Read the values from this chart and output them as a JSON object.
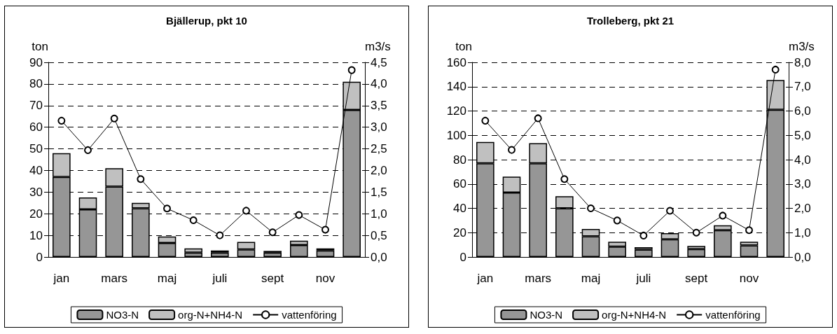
{
  "chart_data": [
    {
      "type": "bar",
      "title": "Bjällerup, pkt 10",
      "ylabel": "ton",
      "y2label": "m3/s",
      "categories": [
        "jan",
        null,
        "mars",
        null,
        "maj",
        null,
        "juli",
        null,
        "sept",
        null,
        "nov",
        null
      ],
      "stacked": true,
      "series": [
        {
          "name": "NO3-N",
          "color": "#969696",
          "values": [
            37,
            22,
            32.5,
            22.5,
            6.5,
            2,
            2,
            3.5,
            2,
            5.5,
            3,
            68
          ]
        },
        {
          "name": "org-N+NH4-N",
          "color": "#c0c0c0",
          "values": [
            11,
            5.5,
            8.5,
            2.5,
            3,
            2,
            1,
            3.5,
            0.8,
            2,
            1,
            13
          ]
        },
        {
          "name": "vattenföring",
          "type": "line",
          "axis": "y2",
          "color": "#000000",
          "marker": "circle",
          "line_style": "solid",
          "values": [
            3.15,
            2.47,
            3.2,
            1.8,
            1.12,
            0.85,
            0.5,
            1.07,
            0.57,
            0.97,
            0.63,
            4.32
          ]
        }
      ],
      "ylim": [
        0,
        90
      ],
      "yticks": [
        0,
        10,
        20,
        30,
        40,
        50,
        60,
        70,
        80,
        90
      ],
      "y2lim": [
        0,
        4.5
      ],
      "y2ticks": [
        {
          "value": 0,
          "label": "0,0"
        },
        {
          "value": 0.5,
          "label": "0,5"
        },
        {
          "value": 1,
          "label": "1,0"
        },
        {
          "value": 1.5,
          "label": "1,5"
        },
        {
          "value": 2,
          "label": "2,0"
        },
        {
          "value": 2.5,
          "label": "2,5"
        },
        {
          "value": 3,
          "label": "3,0"
        },
        {
          "value": 3.5,
          "label": "3,5"
        },
        {
          "value": 4,
          "label": "4,0"
        },
        {
          "value": 4.5,
          "label": "4,5"
        }
      ],
      "grid": "y",
      "legend": "bottom"
    },
    {
      "type": "bar",
      "title": "Trolleberg, pkt 21",
      "ylabel": "ton",
      "y2label": "m3/s",
      "categories": [
        "jan",
        null,
        "mars",
        null,
        "maj",
        null,
        "juli",
        null,
        "sept",
        null,
        "nov",
        null
      ],
      "stacked": true,
      "series": [
        {
          "name": "NO3-N",
          "color": "#969696",
          "values": [
            77,
            53,
            77,
            40,
            17,
            8.5,
            6,
            14.5,
            6.5,
            22,
            9.5,
            121
          ]
        },
        {
          "name": "org-N+NH4-N",
          "color": "#c0c0c0",
          "values": [
            17.5,
            13,
            16.5,
            10,
            6,
            4,
            2,
            5,
            2.5,
            4,
            3,
            24.5
          ]
        },
        {
          "name": "vattenföring",
          "type": "line",
          "axis": "y2",
          "color": "#000000",
          "marker": "circle",
          "line_style": "solid",
          "values": [
            5.6,
            4.4,
            5.7,
            3.2,
            2.0,
            1.5,
            0.88,
            1.9,
            1.0,
            1.7,
            1.1,
            7.7
          ]
        }
      ],
      "ylim": [
        0,
        160
      ],
      "yticks": [
        0,
        20,
        40,
        60,
        80,
        100,
        120,
        140,
        160
      ],
      "y2lim": [
        0,
        8
      ],
      "y2ticks": [
        {
          "value": 0,
          "label": "0,0"
        },
        {
          "value": 1,
          "label": "1,0"
        },
        {
          "value": 2,
          "label": "2,0"
        },
        {
          "value": 3,
          "label": "3,0"
        },
        {
          "value": 4,
          "label": "4,0"
        },
        {
          "value": 5,
          "label": "5,0"
        },
        {
          "value": 6,
          "label": "6,0"
        },
        {
          "value": 7,
          "label": "7,0"
        },
        {
          "value": 8,
          "label": "8,0"
        }
      ],
      "grid": "y",
      "legend": "bottom"
    }
  ]
}
